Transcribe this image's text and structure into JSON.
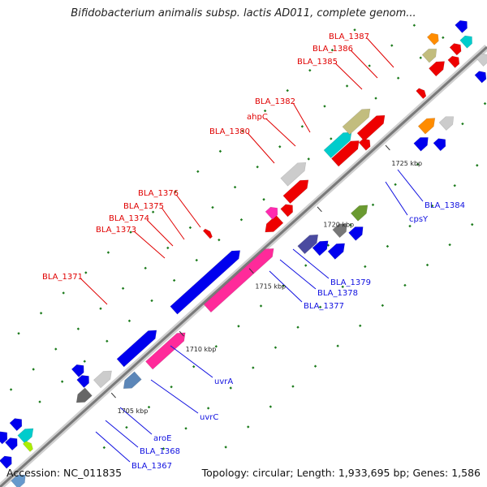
{
  "title": "Bifidobacterium animalis subsp. lactis AD011, complete genom...",
  "footer": {
    "accession": "Accession: NC_011835",
    "summary": "Topology: circular; Length: 1,933,695 bp; Genes: 1,586"
  },
  "colors": {
    "backbone": "#7a7a7a",
    "forward_label": "#e00000",
    "reverse_label": "#1010e0",
    "tick_mark": "#1a7a1a"
  },
  "ticks": [
    {
      "label": "1705 kbp",
      "t": 0.222
    },
    {
      "label": "1710 kbp",
      "t": 0.362
    },
    {
      "label": "1715 kbp",
      "t": 0.505
    },
    {
      "label": "1720 kbp",
      "t": 0.645
    },
    {
      "label": "1725 kbp",
      "t": 0.785
    }
  ],
  "forward_labels": [
    "BLA_1371",
    "BLA_1373",
    "BLA_1374",
    "BLA_1375",
    "BLA_1376",
    "BLA_1380",
    "ahpC",
    "BLA_1382",
    "BLA_1385",
    "BLA_1386",
    "BLA_1387"
  ],
  "reverse_labels": [
    "BLA_1367",
    "BLA_1368",
    "aroE",
    "uvrC",
    "uvrA",
    "BLA_1377",
    "BLA_1378",
    "BLA_1379",
    "cpsY",
    "BLA_1384"
  ]
}
